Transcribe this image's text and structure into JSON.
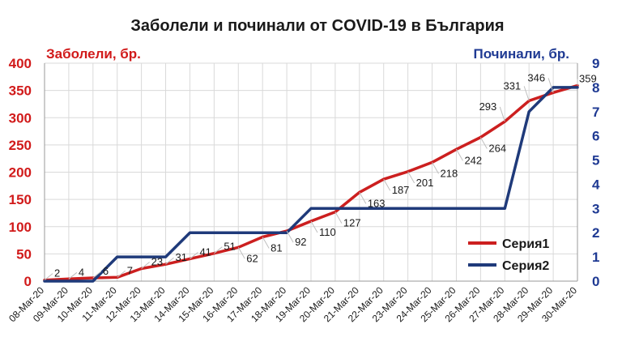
{
  "chart_data": {
    "type": "line",
    "title": "Заболели и починали от COVID-19 в България",
    "ylabel_left": "Заболели, бр.",
    "ylabel_right": "Починали, бр.",
    "categories": [
      "08-Mar-20",
      "09-Mar-20",
      "10-Mar-20",
      "11-Mar-20",
      "12-Mar-20",
      "13-Mar-20",
      "14-Mar-20",
      "15-Mar-20",
      "16-Mar-20",
      "17-Mar-20",
      "18-Mar-20",
      "19-Mar-20",
      "20-Mar-20",
      "21-Mar-20",
      "22-Mar-20",
      "23-Mar-20",
      "24-Mar-20",
      "25-Mar-20",
      "26-Mar-20",
      "27-Mar-20",
      "28-Mar-20",
      "29-Mar-20",
      "30-Mar-20"
    ],
    "ylim_left": [
      0,
      400
    ],
    "yticks_left": [
      "0",
      "50",
      "100",
      "150",
      "200",
      "250",
      "300",
      "350",
      "400"
    ],
    "ylim_right": [
      0,
      9
    ],
    "yticks_right": [
      "0",
      "1",
      "2",
      "3",
      "4",
      "5",
      "6",
      "7",
      "8",
      "9"
    ],
    "grid": true,
    "legend_position": "right",
    "series": [
      {
        "name": "Серия1",
        "axis": "left",
        "color": "#cc1f1f",
        "values": [
          2,
          4,
          6,
          7,
          23,
          31,
          41,
          51,
          62,
          81,
          92,
          110,
          127,
          163,
          187,
          201,
          218,
          242,
          264,
          293,
          331,
          346,
          359
        ],
        "labels": [
          "2",
          "4",
          "6",
          "7",
          "23",
          "31",
          "41",
          "51",
          "62",
          "81",
          "92",
          "110",
          "127",
          "163",
          "187",
          "201",
          "218",
          "242",
          "264",
          "293",
          "331",
          "346",
          "359"
        ]
      },
      {
        "name": "Серия2",
        "axis": "right",
        "color": "#1f3a7a",
        "values": [
          0,
          0,
          0,
          1,
          1,
          1,
          2,
          2,
          2,
          2,
          2,
          3,
          3,
          3,
          3,
          3,
          3,
          3,
          3,
          3,
          7,
          8,
          8
        ]
      }
    ]
  }
}
